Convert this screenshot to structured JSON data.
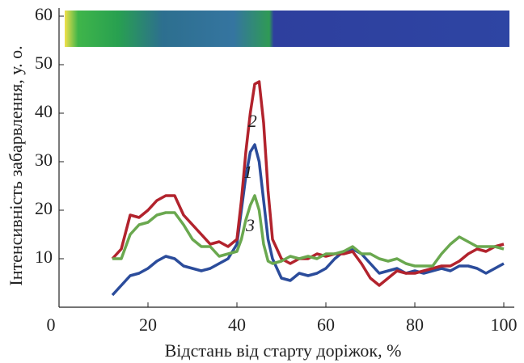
{
  "chart_data": {
    "type": "line",
    "x_label": "Відстань від старту доріжок, %",
    "y_label": "Інтенсивність забарвлення, у. о.",
    "x": [
      12,
      14,
      16,
      18,
      20,
      22,
      24,
      26,
      28,
      30,
      32,
      34,
      36,
      38,
      40,
      41,
      42,
      43,
      44,
      45,
      46,
      47,
      48,
      50,
      52,
      54,
      56,
      58,
      60,
      62,
      64,
      66,
      68,
      70,
      72,
      74,
      76,
      78,
      80,
      82,
      84,
      86,
      88,
      90,
      92,
      94,
      96,
      98,
      100
    ],
    "series": [
      {
        "color": "#2b4c9b",
        "values": [
          2.5,
          4.5,
          6.5,
          7,
          8,
          9.5,
          10.5,
          10,
          8.5,
          8,
          7.5,
          8,
          9,
          10,
          13,
          20,
          27,
          32,
          33.5,
          30,
          22,
          14,
          10,
          6,
          5.5,
          7,
          6.5,
          7,
          8,
          10,
          11.5,
          12,
          11,
          9,
          7,
          7.5,
          8,
          7,
          7.5,
          7,
          7.5,
          8,
          7.5,
          8.5,
          8.5,
          8,
          7,
          8,
          9
        ]
      },
      {
        "color": "#b2232d",
        "values": [
          10,
          12,
          19,
          18.5,
          20,
          22,
          23,
          23,
          19,
          17,
          15,
          13,
          13.5,
          12.5,
          14,
          22,
          32,
          40,
          46,
          46.5,
          38,
          24,
          14,
          10,
          9,
          10,
          10,
          11,
          10.5,
          11,
          11,
          11.5,
          9,
          6,
          4.5,
          6,
          7.5,
          7,
          7,
          7.5,
          8,
          8.5,
          8.5,
          9.5,
          11,
          12,
          11.5,
          12.5,
          13
        ]
      },
      {
        "color": "#6aa84f",
        "values": [
          10,
          10,
          15,
          17,
          17.5,
          19,
          19.5,
          19.5,
          17,
          14,
          12.5,
          12.5,
          10.5,
          11,
          11.5,
          14,
          18,
          21,
          23,
          20,
          13,
          9.5,
          9,
          9.5,
          10.5,
          10,
          10.5,
          10,
          11,
          11,
          11.5,
          12.5,
          11,
          11,
          10,
          9.5,
          10,
          9,
          8.5,
          8.5,
          8.5,
          11,
          13,
          14.5,
          13.5,
          12.5,
          12.5,
          12.5,
          12
        ]
      }
    ],
    "annotations": [
      {
        "text": "1",
        "x": 42.5,
        "y": 27.5
      },
      {
        "text": "2",
        "x": 43.5,
        "y": 38
      },
      {
        "text": "3",
        "x": 43,
        "y": 16.5
      }
    ],
    "xlim": [
      0,
      101
    ],
    "xticks": [
      0,
      20,
      40,
      60,
      80,
      100
    ],
    "ylim": [
      0,
      61
    ],
    "yticks": [
      10,
      20,
      30,
      40,
      50,
      60
    ]
  }
}
